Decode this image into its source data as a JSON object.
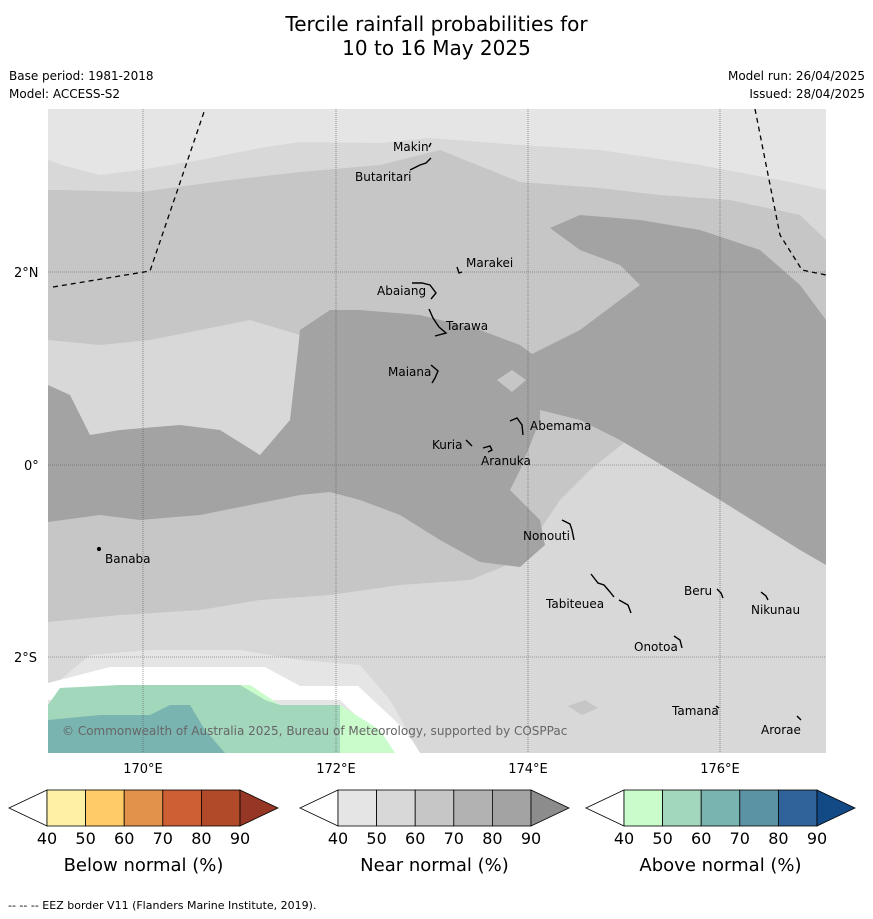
{
  "title_line1": "Tercile rainfall probabilities for",
  "title_line2": "10 to 16 May 2025",
  "base_period": "Base period: 1981-2018",
  "model": "Model: ACCESS-S2",
  "model_run": "Model run: 26/04/2025",
  "issued": "Issued: 28/04/2025",
  "credit": "© Commonwealth of Australia 2025, Bureau of Meteorology, supported by COSPPac",
  "footnote": "--  --  -- EEZ border V11 (Flanders Marine Institute, 2019).",
  "lat_labels": [
    "2°N",
    "0°",
    "2°S"
  ],
  "lon_labels": [
    "170°E",
    "172°E",
    "174°E",
    "176°E"
  ],
  "places": {
    "makin": "Makin",
    "butaritari": "Butaritari",
    "marakei": "Marakei",
    "abaiang": "Abaiang",
    "tarawa": "Tarawa",
    "maiana": "Maiana",
    "abemama": "Abemama",
    "kuria": "Kuria",
    "aranuka": "Aranuka",
    "nonouti": "Nonouti",
    "banaba": "Banaba",
    "beru": "Beru",
    "tabiteuea": "Tabiteuea",
    "nikunau": "Nikunau",
    "onotoa": "Onotoa",
    "tamana": "Tamana",
    "arorae": "Arorae"
  },
  "colorbars": [
    {
      "label": "Below normal (%)",
      "ticks": [
        "40",
        "50",
        "60",
        "70",
        "80",
        "90"
      ],
      "colors": [
        "#fff0a6",
        "#fecb66",
        "#e2924a",
        "#cc5f33",
        "#b04a28",
        "#963625"
      ]
    },
    {
      "label": "Near normal (%)",
      "ticks": [
        "40",
        "50",
        "60",
        "70",
        "80",
        "90"
      ],
      "colors": [
        "#e5e5e5",
        "#d8d8d8",
        "#c6c6c6",
        "#b2b2b2",
        "#a3a3a3",
        "#8c8c8c"
      ]
    },
    {
      "label": "Above normal (%)",
      "ticks": [
        "40",
        "50",
        "60",
        "70",
        "80",
        "90"
      ],
      "colors": [
        "#cafbcb",
        "#a3d7bc",
        "#7ab4b0",
        "#5c93a4",
        "#2f6399",
        "#124a86"
      ]
    }
  ]
}
